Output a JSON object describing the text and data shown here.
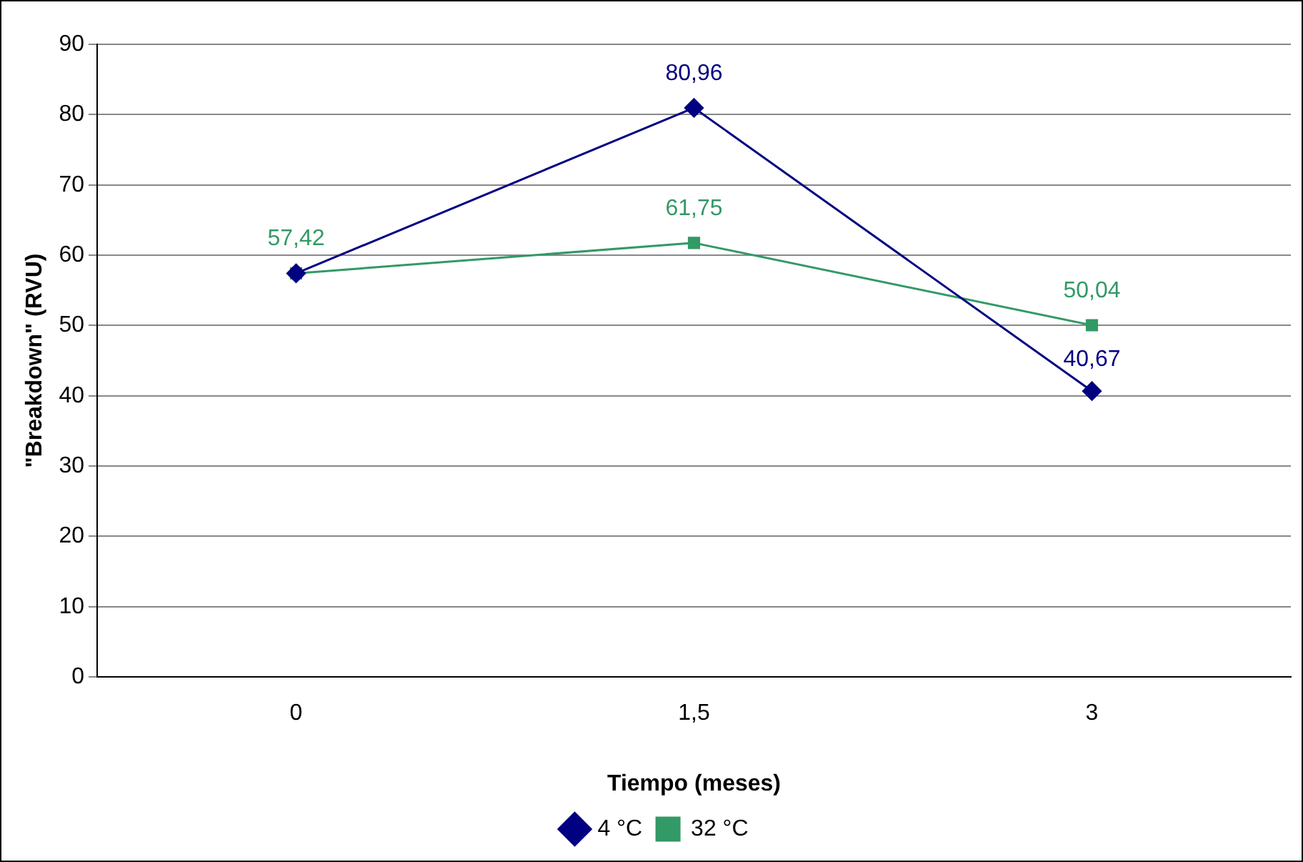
{
  "chart_data": {
    "type": "line",
    "xlabel": "Tiempo (meses)",
    "ylabel": "\"Breakdown\" (RVU)",
    "categories": [
      "0",
      "1,5",
      "3"
    ],
    "series": [
      {
        "name": "4 °C",
        "color": "#000080",
        "marker": "diamond",
        "values": [
          57.42,
          80.96,
          40.67
        ],
        "value_labels": [
          null,
          "80,96",
          "40,67"
        ]
      },
      {
        "name": "32 °C",
        "color": "#339966",
        "marker": "square",
        "values": [
          57.42,
          61.75,
          50.04
        ],
        "value_labels": [
          "57,42",
          "61,75",
          "50,04"
        ]
      }
    ],
    "ylim": [
      0,
      90
    ],
    "yticks": [
      0,
      10,
      20,
      30,
      40,
      50,
      60,
      70,
      80,
      90
    ],
    "grid": "y",
    "legend": "bottom",
    "line_style": "solid"
  }
}
